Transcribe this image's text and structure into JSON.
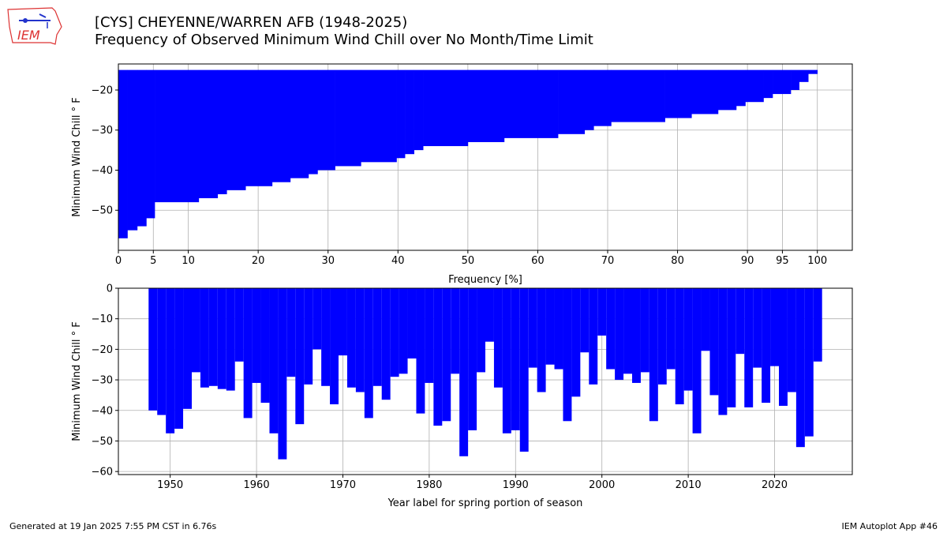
{
  "header": {
    "title_line1": "[CYS] CHEYENNE/WARREN AFB (1948-2025)",
    "title_line2": "Frequency of Observed Minimum Wind Chill over No Month/Time Limit",
    "logo_text": "IEM"
  },
  "footer": {
    "generated": "Generated at 19 Jan 2025 7:55 PM CST in 6.76s",
    "app": "IEM Autoplot App #46"
  },
  "colors": {
    "bars": "#0000ff",
    "grid": "#b0b0b0",
    "logo_red": "#d33",
    "logo_blue": "#2233cc"
  },
  "chart_data": [
    {
      "type": "step-bar",
      "xlabel": "Frequency [%]",
      "ylabel": "Minimum Wind Chill ° F",
      "xlim": [
        0,
        105
      ],
      "ylim": [
        -60,
        -13.5
      ],
      "xticks": [
        0,
        5,
        10,
        20,
        30,
        40,
        50,
        60,
        70,
        80,
        90,
        95,
        100
      ],
      "yticks": [
        -20,
        -30,
        -40,
        -50
      ],
      "grid": true,
      "bar_top": -15,
      "steps": [
        {
          "x0": 0,
          "x1": 1.3,
          "y": -57
        },
        {
          "x0": 1.3,
          "x1": 2.7,
          "y": -55
        },
        {
          "x0": 2.7,
          "x1": 4,
          "y": -54
        },
        {
          "x0": 4,
          "x1": 5.2,
          "y": -52
        },
        {
          "x0": 5.2,
          "x1": 11.5,
          "y": -48
        },
        {
          "x0": 11.5,
          "x1": 14.2,
          "y": -47
        },
        {
          "x0": 14.2,
          "x1": 15.5,
          "y": -46
        },
        {
          "x0": 15.5,
          "x1": 18.2,
          "y": -45
        },
        {
          "x0": 18.2,
          "x1": 22,
          "y": -44
        },
        {
          "x0": 22,
          "x1": 24.6,
          "y": -43
        },
        {
          "x0": 24.6,
          "x1": 27.2,
          "y": -42
        },
        {
          "x0": 27.2,
          "x1": 28.5,
          "y": -41
        },
        {
          "x0": 28.5,
          "x1": 31,
          "y": -40
        },
        {
          "x0": 31,
          "x1": 34.7,
          "y": -39
        },
        {
          "x0": 34.7,
          "x1": 39.8,
          "y": -38
        },
        {
          "x0": 39.8,
          "x1": 41,
          "y": -37
        },
        {
          "x0": 41,
          "x1": 42.3,
          "y": -36
        },
        {
          "x0": 42.3,
          "x1": 43.6,
          "y": -35
        },
        {
          "x0": 43.6,
          "x1": 50,
          "y": -34
        },
        {
          "x0": 50,
          "x1": 55.2,
          "y": -33
        },
        {
          "x0": 55.2,
          "x1": 62.9,
          "y": -32
        },
        {
          "x0": 62.9,
          "x1": 66.7,
          "y": -31
        },
        {
          "x0": 66.7,
          "x1": 68,
          "y": -30
        },
        {
          "x0": 68,
          "x1": 70.5,
          "y": -29
        },
        {
          "x0": 70.5,
          "x1": 78.2,
          "y": -28
        },
        {
          "x0": 78.2,
          "x1": 82,
          "y": -27
        },
        {
          "x0": 82,
          "x1": 85.8,
          "y": -26
        },
        {
          "x0": 85.8,
          "x1": 88.4,
          "y": -25
        },
        {
          "x0": 88.4,
          "x1": 89.7,
          "y": -24
        },
        {
          "x0": 89.7,
          "x1": 92.3,
          "y": -23
        },
        {
          "x0": 92.3,
          "x1": 93.6,
          "y": -22
        },
        {
          "x0": 93.6,
          "x1": 96.2,
          "y": -21
        },
        {
          "x0": 96.2,
          "x1": 97.4,
          "y": -20
        },
        {
          "x0": 97.4,
          "x1": 98.7,
          "y": -18
        },
        {
          "x0": 98.7,
          "x1": 100,
          "y": -16
        }
      ]
    },
    {
      "type": "bar",
      "xlabel": "Year label for spring portion of season",
      "ylabel": "Minimum Wind Chill ° F",
      "xlim": [
        1944,
        2029
      ],
      "ylim": [
        -61,
        0
      ],
      "xticks": [
        1950,
        1960,
        1970,
        1980,
        1990,
        2000,
        2010,
        2020
      ],
      "yticks": [
        0,
        -10,
        -20,
        -30,
        -40,
        -50,
        -60
      ],
      "grid": true,
      "x": [
        1948,
        1949,
        1950,
        1951,
        1952,
        1953,
        1954,
        1955,
        1956,
        1957,
        1958,
        1959,
        1960,
        1961,
        1962,
        1963,
        1964,
        1965,
        1966,
        1967,
        1968,
        1969,
        1970,
        1971,
        1972,
        1973,
        1974,
        1975,
        1976,
        1977,
        1978,
        1979,
        1980,
        1981,
        1982,
        1983,
        1984,
        1985,
        1986,
        1987,
        1988,
        1989,
        1990,
        1991,
        1992,
        1993,
        1994,
        1995,
        1996,
        1997,
        1998,
        1999,
        2000,
        2001,
        2002,
        2003,
        2004,
        2005,
        2006,
        2007,
        2008,
        2009,
        2010,
        2011,
        2012,
        2013,
        2014,
        2015,
        2016,
        2017,
        2018,
        2019,
        2020,
        2021,
        2022,
        2023,
        2024,
        2025
      ],
      "values": [
        -40,
        -41.5,
        -47.5,
        -46,
        -39.5,
        -27.5,
        -32.5,
        -32,
        -33,
        -33.5,
        -24,
        -42.5,
        -31,
        -37.5,
        -47.5,
        -56,
        -29,
        -44.5,
        -31.5,
        -20,
        -32,
        -38,
        -22,
        -32.5,
        -34,
        -42.5,
        -32,
        -36.5,
        -29,
        -28,
        -23,
        -41,
        -31,
        -45,
        -43.5,
        -28,
        -55,
        -46.5,
        -27.5,
        -17.5,
        -32.5,
        -47.5,
        -46.5,
        -53.5,
        -26,
        -34,
        -25,
        -26.5,
        -43.5,
        -35.5,
        -21,
        -31.5,
        -15.5,
        -26.5,
        -30,
        -28,
        -31,
        -27.5,
        -43.5,
        -31.5,
        -26.5,
        -38,
        -33.5,
        -47.5,
        -20.5,
        -35,
        -41.5,
        -39,
        -21.5,
        -39,
        -26,
        -37.5,
        -25.5,
        -38.5,
        -34,
        -52,
        -48.5,
        -24
      ]
    }
  ]
}
